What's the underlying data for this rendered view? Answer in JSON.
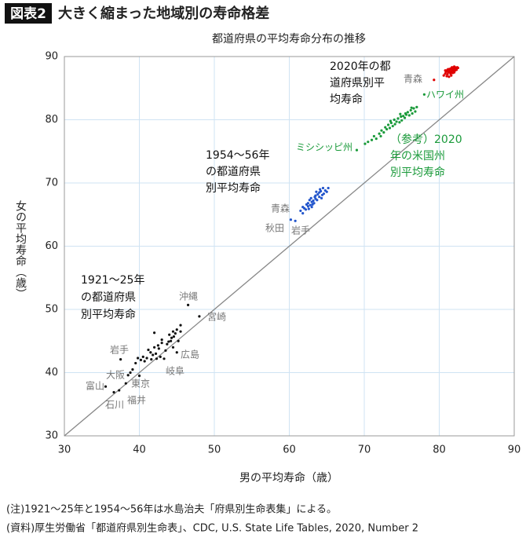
{
  "chart_data": {
    "type": "scatter",
    "title_tag": "図表2",
    "title": "大きく縮まった地域別の寿命格差",
    "subtitle": "都道府県の平均寿命分布の推移",
    "xlabel": "男の平均寿命（歳）",
    "ylabel": "女の平均寿命（歳）",
    "xlim": [
      30,
      90
    ],
    "xticks": [
      30,
      40,
      50,
      60,
      70,
      80,
      90
    ],
    "ylim": [
      30,
      90
    ],
    "yticks": [
      30,
      40,
      50,
      60,
      70,
      80,
      90
    ],
    "grid": true,
    "series": [
      {
        "color": "#111111",
        "x": [
          35.5,
          36.6,
          37.3,
          37.5,
          38.2,
          38.5,
          38.8,
          39.5,
          39.8,
          40.2,
          40.5,
          40.7,
          41.0,
          41.5,
          41.8,
          42.0,
          42.0,
          42.2,
          42.5,
          42.6,
          42.8,
          43.0,
          43.0,
          43.3,
          43.5,
          43.7,
          44.0,
          44.2,
          44.3,
          44.5,
          44.5,
          44.8,
          45.0,
          45.0,
          45.2,
          45.5,
          45.5,
          46.5,
          48.0,
          42.3,
          41.2,
          40.0,
          43.9,
          44.6,
          41.6,
          39.1
        ],
        "y": [
          37.8,
          36.9,
          37.2,
          42.1,
          38.3,
          39.6,
          40.0,
          41.5,
          42.3,
          42.0,
          42.5,
          41.8,
          42.3,
          43.2,
          42.8,
          44.0,
          46.3,
          43.0,
          44.3,
          43.8,
          42.5,
          45.2,
          44.7,
          42.2,
          43.5,
          44.5,
          46.0,
          45.0,
          45.5,
          46.5,
          44.0,
          46.2,
          46.8,
          43.2,
          45.0,
          47.5,
          46.5,
          50.7,
          48.9,
          42.2,
          43.6,
          39.5,
          44.9,
          45.7,
          42.1,
          40.5
        ]
      },
      {
        "color": "#2255cc",
        "x": [
          60.2,
          60.8,
          61.5,
          61.8,
          62.0,
          62.2,
          62.5,
          62.5,
          62.8,
          63.0,
          63.0,
          63.2,
          63.3,
          63.5,
          63.5,
          63.7,
          63.8,
          64.0,
          64.0,
          64.2,
          64.3,
          64.5,
          64.6,
          64.8,
          65.0,
          65.2,
          62.7,
          63.4,
          62.3,
          61.8,
          64.1,
          63.6,
          62.9,
          64.4,
          63.1,
          62.6
        ],
        "y": [
          64.2,
          64.0,
          65.6,
          65.2,
          66.0,
          65.8,
          66.3,
          66.8,
          66.5,
          67.0,
          66.2,
          67.2,
          66.8,
          67.5,
          68.0,
          67.3,
          68.2,
          67.8,
          68.5,
          68.7,
          67.6,
          69.2,
          68.3,
          68.8,
          68.6,
          69.2,
          67.3,
          67.8,
          66.6,
          66.2,
          69.0,
          68.6,
          67.6,
          68.1,
          66.6,
          65.9
        ]
      },
      {
        "color": "#e00000",
        "x": [
          79.3,
          80.6,
          80.8,
          80.9,
          81.0,
          81.0,
          81.1,
          81.2,
          81.2,
          81.3,
          81.3,
          81.4,
          81.5,
          81.5,
          81.6,
          81.6,
          81.7,
          81.7,
          81.8,
          81.8,
          81.9,
          81.9,
          82.0,
          82.0,
          82.1,
          82.1,
          82.2,
          82.3,
          82.4,
          82.5,
          80.8,
          81.1,
          81.4,
          81.7,
          82.0,
          82.3,
          81.5
        ],
        "y": [
          86.3,
          87.0,
          87.3,
          87.6,
          86.9,
          87.7,
          87.2,
          87.5,
          88.0,
          86.8,
          87.6,
          87.9,
          87.3,
          88.1,
          87.6,
          87.0,
          87.9,
          88.3,
          87.4,
          88.0,
          87.7,
          88.2,
          87.5,
          88.1,
          87.8,
          88.3,
          88.0,
          87.9,
          88.3,
          88.2,
          87.8,
          87.9,
          88.0,
          88.2,
          88.4,
          88.0,
          87.5
        ]
      },
      {
        "color": "#1a9a3a",
        "x": [
          69.0,
          70.1,
          70.5,
          71.0,
          71.3,
          71.6,
          72.0,
          72.3,
          72.6,
          72.8,
          73.0,
          73.2,
          73.4,
          73.6,
          73.8,
          74.0,
          74.1,
          74.3,
          74.5,
          74.7,
          74.9,
          75.0,
          75.2,
          75.4,
          75.6,
          75.8,
          76.0,
          76.2,
          76.4,
          76.6,
          76.8,
          77.0,
          78.0,
          73.5,
          74.8,
          75.5,
          72.2,
          76.3
        ],
        "y": [
          75.2,
          76.2,
          76.5,
          76.8,
          77.4,
          77.0,
          77.8,
          78.3,
          78.0,
          78.8,
          78.5,
          79.2,
          78.7,
          79.5,
          79.0,
          80.0,
          79.3,
          79.7,
          80.2,
          79.6,
          80.5,
          79.9,
          80.6,
          80.3,
          80.8,
          81.2,
          80.7,
          81.5,
          81.0,
          81.8,
          81.3,
          82.0,
          84.0,
          79.8,
          80.9,
          81.0,
          77.4,
          81.9
        ]
      }
    ],
    "annotations": [
      [
        "2020年の都",
        "道府県別平",
        "均寿命"
      ],
      [
        "青森"
      ],
      [
        "ハワイ州"
      ],
      [
        "ミシシッピ州"
      ],
      [
        "（参考）2020",
        "年の米国州",
        "別平均寿命"
      ],
      [
        "1954～56年",
        "の都道府県",
        "別平均寿命"
      ],
      [
        "青森"
      ],
      [
        "秋田"
      ],
      [
        "岩手"
      ],
      [
        "1921～25年",
        "の都道府県",
        "別平均寿命"
      ],
      [
        "沖縄"
      ],
      [
        "宮崎"
      ],
      [
        "広島"
      ],
      [
        "岐阜"
      ],
      [
        "岩手"
      ],
      [
        "大阪"
      ],
      [
        "東京"
      ],
      [
        "富山"
      ],
      [
        "福井"
      ],
      [
        "石川"
      ]
    ],
    "notes": [
      "(注)1921～25年と1954～56年は水島治夫「府県別生命表集」による。",
      "(資料)厚生労働省「都道府県別生命表」、CDC, U.S. State Life Tables, 2020, Number 2"
    ]
  }
}
